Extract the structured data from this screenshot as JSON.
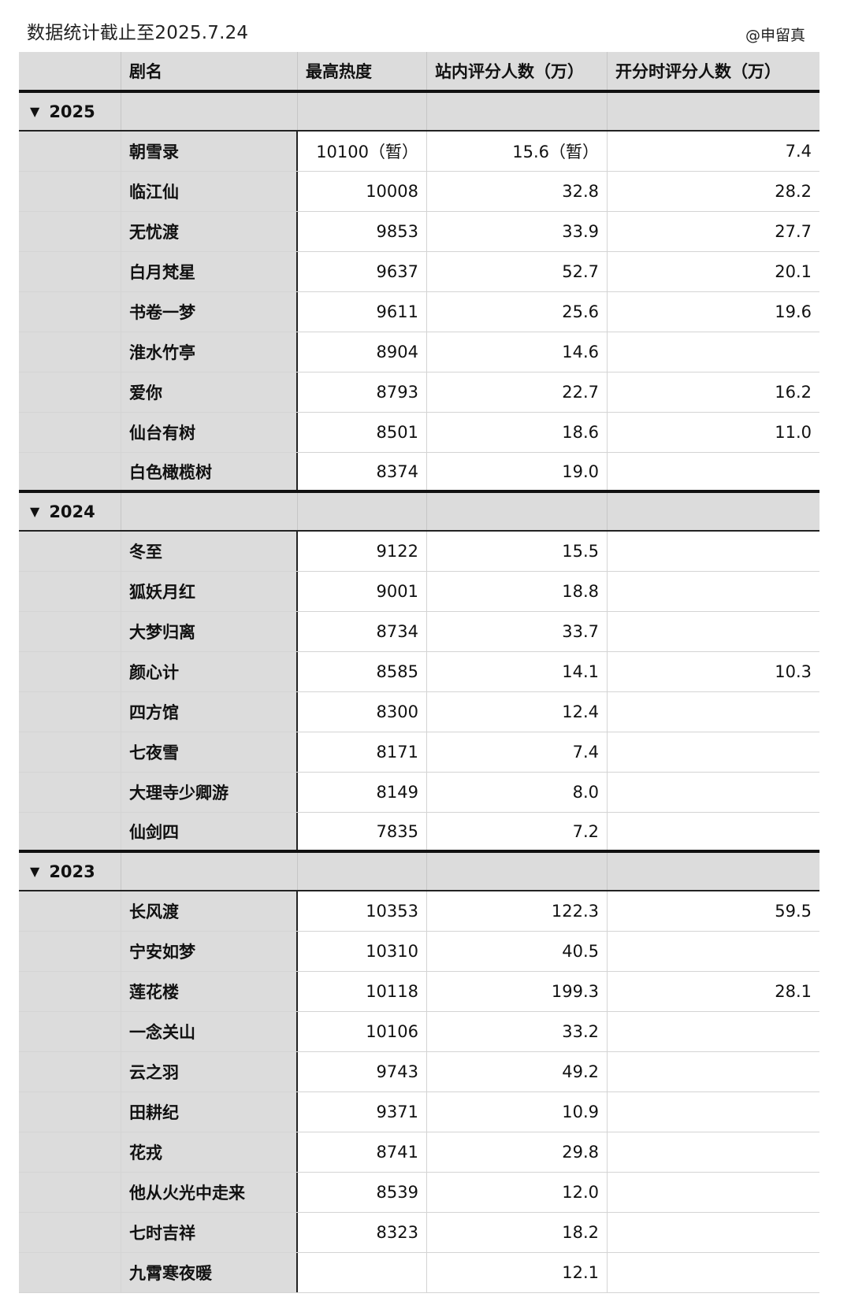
{
  "caption": "数据统计截止至2025.7.24",
  "credit": "@申留真",
  "headers": {
    "name": "剧名",
    "peak_heat": "最高热度",
    "rating_count": "站内评分人数（万）",
    "open_rating_count": "开分时评分人数（万）"
  },
  "groups": [
    {
      "year": "2025",
      "rows": [
        {
          "name": "朝雪录",
          "heat": "10100（暂）",
          "rating": "15.6（暂）",
          "open": "7.4"
        },
        {
          "name": "临江仙",
          "heat": "10008",
          "rating": "32.8",
          "open": "28.2"
        },
        {
          "name": "无忧渡",
          "heat": "9853",
          "rating": "33.9",
          "open": "27.7"
        },
        {
          "name": "白月梵星",
          "heat": "9637",
          "rating": "52.7",
          "open": "20.1"
        },
        {
          "name": "书卷一梦",
          "heat": "9611",
          "rating": "25.6",
          "open": "19.6"
        },
        {
          "name": "淮水竹亭",
          "heat": "8904",
          "rating": "14.6",
          "open": ""
        },
        {
          "name": "爱你",
          "heat": "8793",
          "rating": "22.7",
          "open": "16.2"
        },
        {
          "name": "仙台有树",
          "heat": "8501",
          "rating": "18.6",
          "open": "11.0"
        },
        {
          "name": "白色橄榄树",
          "heat": "8374",
          "rating": "19.0",
          "open": ""
        }
      ]
    },
    {
      "year": "2024",
      "rows": [
        {
          "name": "冬至",
          "heat": "9122",
          "rating": "15.5",
          "open": ""
        },
        {
          "name": "狐妖月红",
          "heat": "9001",
          "rating": "18.8",
          "open": ""
        },
        {
          "name": "大梦归离",
          "heat": "8734",
          "rating": "33.7",
          "open": ""
        },
        {
          "name": "颜心计",
          "heat": "8585",
          "rating": "14.1",
          "open": "10.3"
        },
        {
          "name": "四方馆",
          "heat": "8300",
          "rating": "12.4",
          "open": ""
        },
        {
          "name": "七夜雪",
          "heat": "8171",
          "rating": "7.4",
          "open": ""
        },
        {
          "name": "大理寺少卿游",
          "heat": "8149",
          "rating": "8.0",
          "open": ""
        },
        {
          "name": "仙剑四",
          "heat": "7835",
          "rating": "7.2",
          "open": ""
        }
      ]
    },
    {
      "year": "2023",
      "rows": [
        {
          "name": "长风渡",
          "heat": "10353",
          "rating": "122.3",
          "open": "59.5"
        },
        {
          "name": "宁安如梦",
          "heat": "10310",
          "rating": "40.5",
          "open": ""
        },
        {
          "name": "莲花楼",
          "heat": "10118",
          "rating": "199.3",
          "open": "28.1"
        },
        {
          "name": "一念关山",
          "heat": "10106",
          "rating": "33.2",
          "open": ""
        },
        {
          "name": "云之羽",
          "heat": "9743",
          "rating": "49.2",
          "open": ""
        },
        {
          "name": "田耕纪",
          "heat": "9371",
          "rating": "10.9",
          "open": ""
        },
        {
          "name": "花戎",
          "heat": "8741",
          "rating": "29.8",
          "open": ""
        },
        {
          "name": "他从火光中走来",
          "heat": "8539",
          "rating": "12.0",
          "open": ""
        },
        {
          "name": "七时吉祥",
          "heat": "8323",
          "rating": "18.2",
          "open": ""
        },
        {
          "name": "九霄寒夜暖",
          "heat": "",
          "rating": "12.1",
          "open": ""
        }
      ]
    }
  ]
}
